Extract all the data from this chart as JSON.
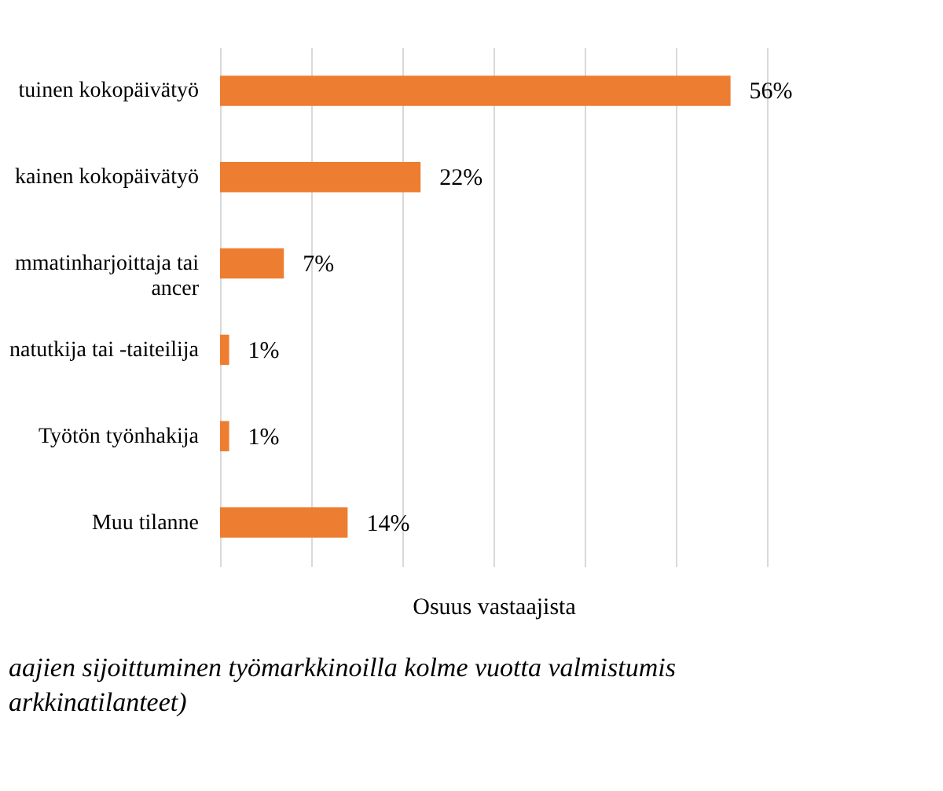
{
  "chart_data": {
    "type": "bar",
    "orientation": "horizontal",
    "categories": [
      "tuinen kokopäivätyö",
      "kainen kokopäivätyö",
      "mmatinharjoittaja tai\nancer",
      "natutkija tai -taiteilija",
      "Työtön työnhakija",
      "Muu tilanne"
    ],
    "values": [
      56,
      22,
      7,
      1,
      1,
      14
    ],
    "value_labels": [
      "56%",
      "22%",
      "7%",
      "1%",
      "1%",
      "14%"
    ],
    "color": "#ed7d31",
    "xlabel": "Osuus vastaajista",
    "xlim": [
      0,
      60
    ],
    "xticks": [
      {
        "value": 0,
        "label": null
      },
      {
        "value": 10,
        "label": null
      },
      {
        "value": 20,
        "label": null
      },
      {
        "value": 30,
        "label": null
      },
      {
        "value": 40,
        "label": null
      },
      {
        "value": 50,
        "label": null
      },
      {
        "value": 60,
        "label": null
      }
    ],
    "tick_labels": "y",
    "grid": "x",
    "annotations": [
      "aajien sijoittuminen työmarkkinoilla kolme vuotta valmistumis",
      "arkkinatilanteet)"
    ]
  }
}
